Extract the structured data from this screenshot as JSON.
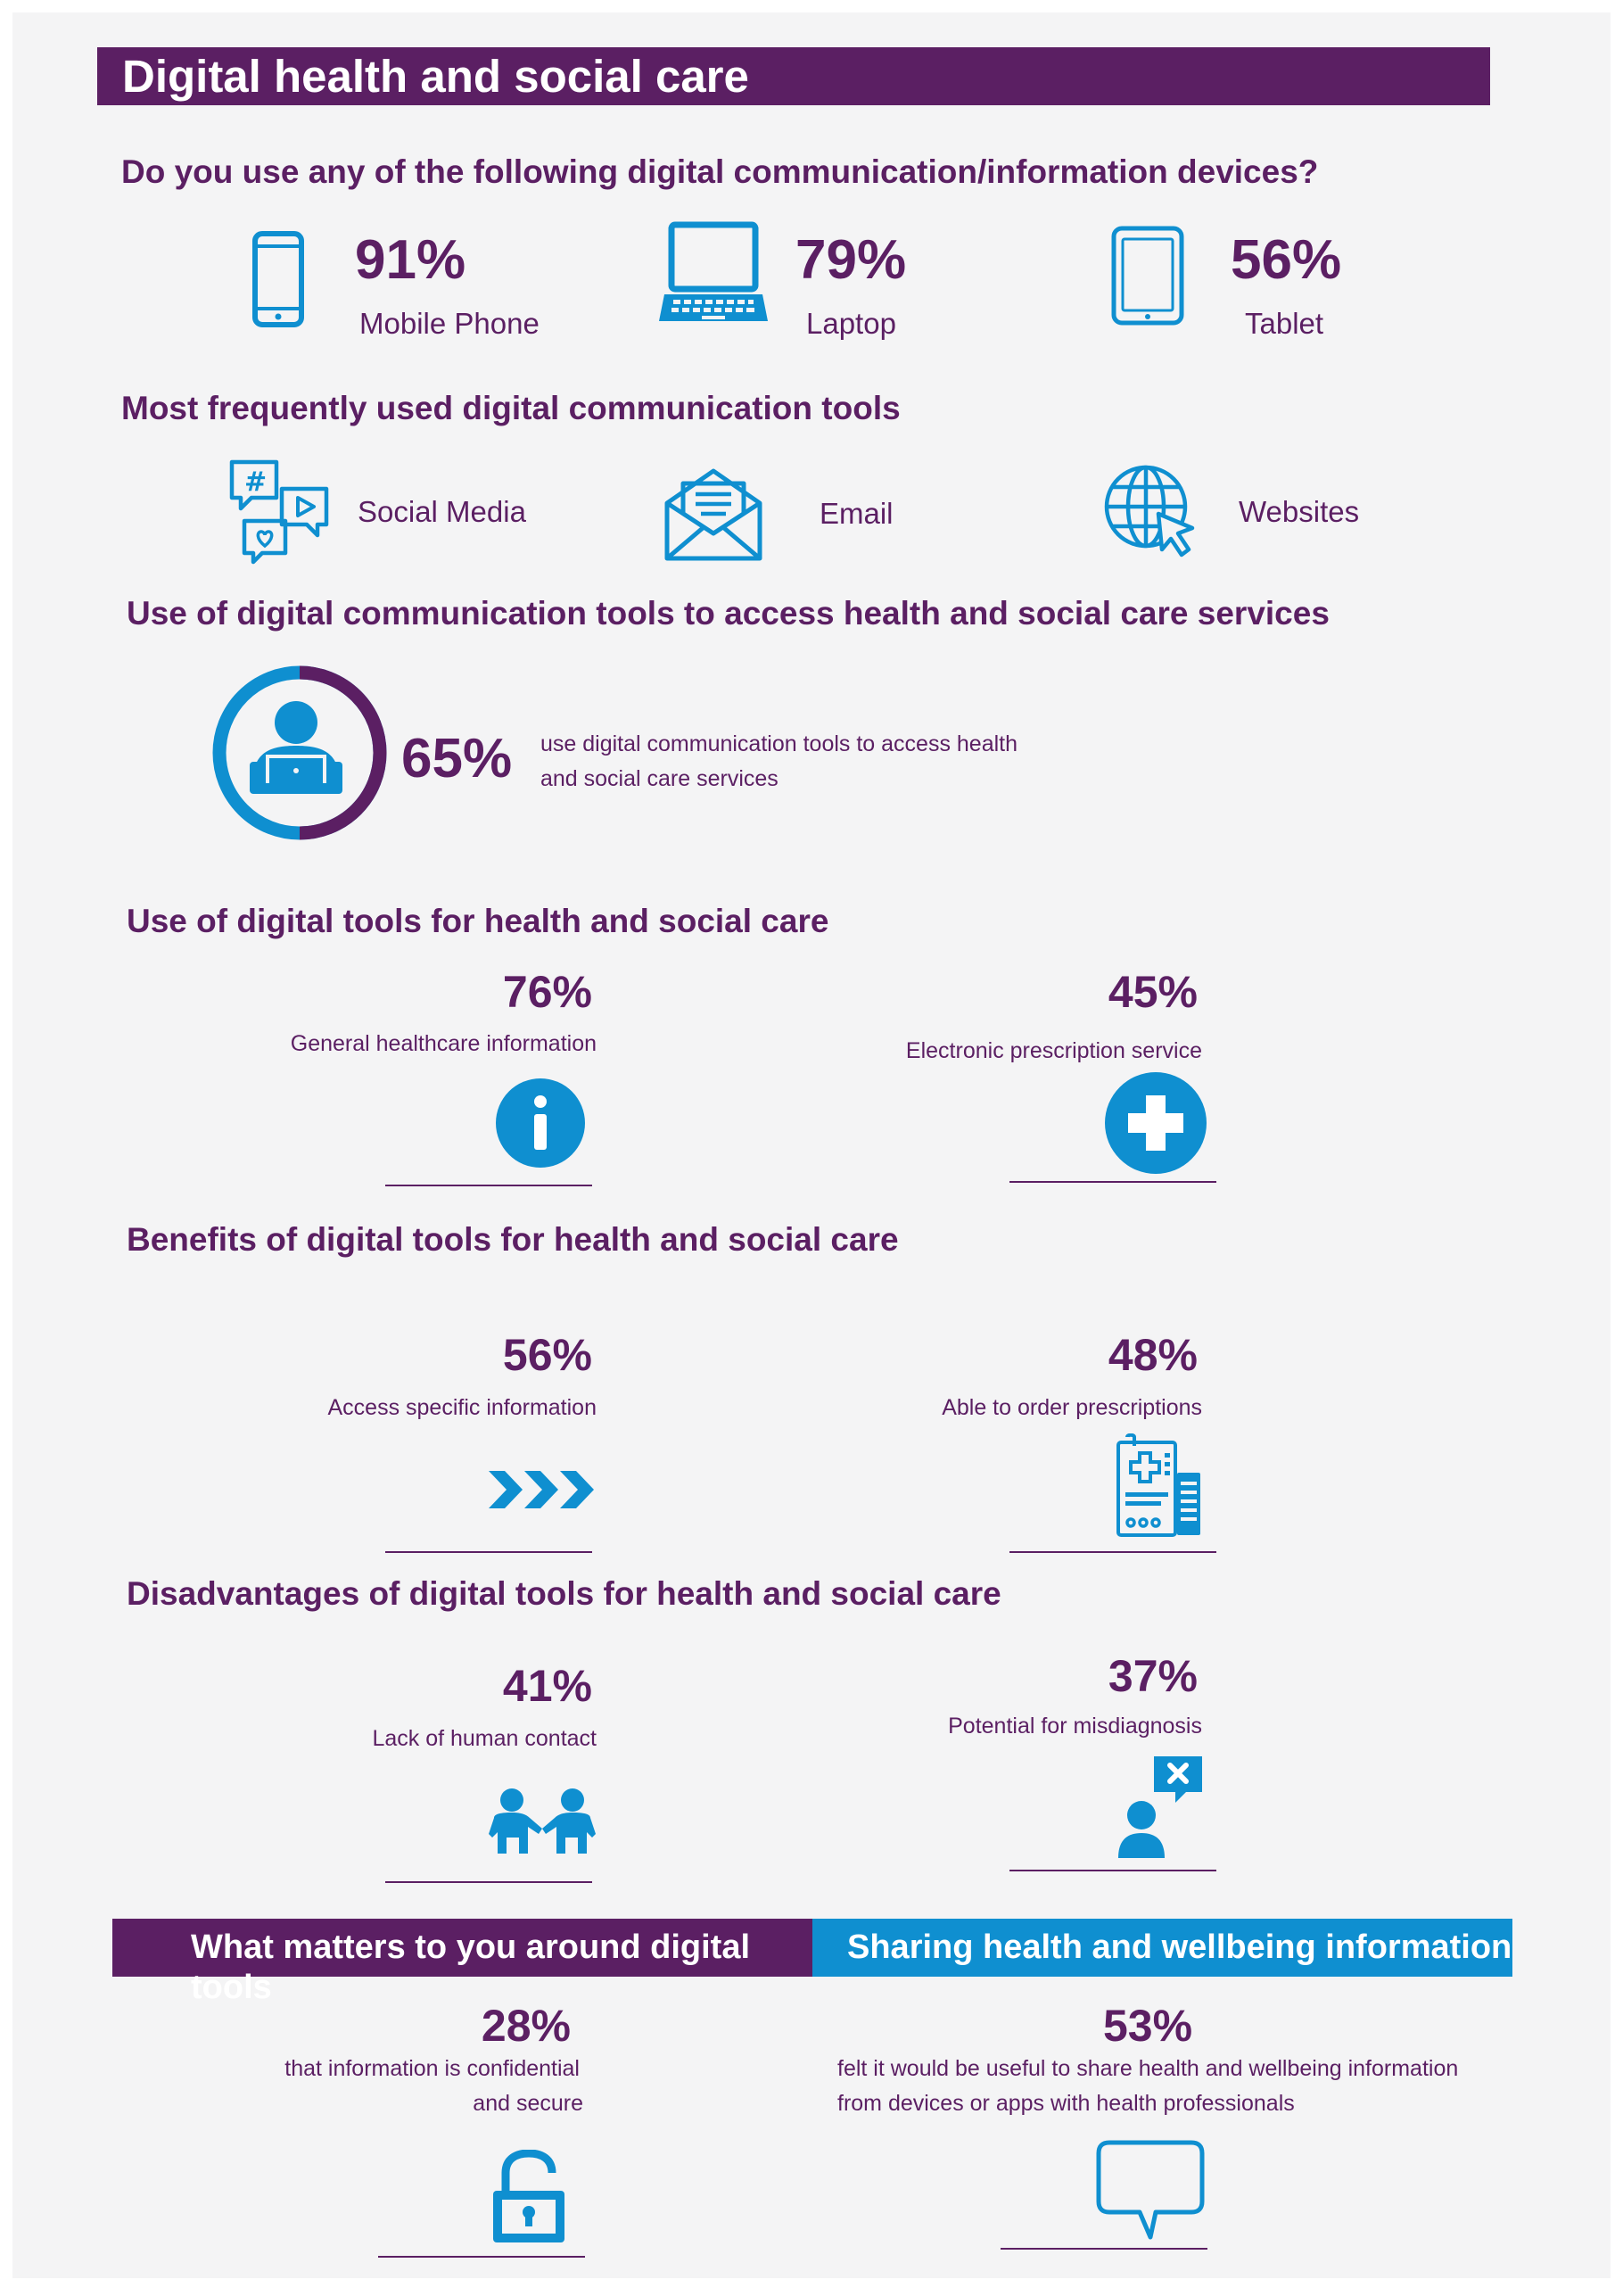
{
  "title": "Digital health and social care",
  "devices": {
    "question": "Do you use any of the following digital communication/information devices?",
    "items": [
      {
        "pct": "91%",
        "label": "Mobile Phone",
        "icon": "mobile-phone-icon"
      },
      {
        "pct": "79%",
        "label": "Laptop",
        "icon": "laptop-icon"
      },
      {
        "pct": "56%",
        "label": "Tablet",
        "icon": "tablet-icon"
      }
    ]
  },
  "tools": {
    "heading": "Most frequently used digital communication tools",
    "items": [
      {
        "label": "Social Media",
        "icon": "social-media-icon"
      },
      {
        "label": "Email",
        "icon": "email-icon"
      },
      {
        "label": "Websites",
        "icon": "website-globe-icon"
      }
    ]
  },
  "access": {
    "heading": "Use of digital communication tools to access health and social care services",
    "pct": "65%",
    "pct_value": 65,
    "line1": "use digital communication tools to access health",
    "line2": "and social care services"
  },
  "use": {
    "heading": "Use of digital tools for health and social care",
    "left": {
      "pct": "76%",
      "label": "General healthcare information",
      "icon": "info-icon"
    },
    "right": {
      "pct": "45%",
      "label": "Electronic prescription service",
      "icon": "medical-cross-icon"
    }
  },
  "benefits": {
    "heading": "Benefits of digital tools for health and social care",
    "left": {
      "pct": "56%",
      "label": "Access specific information",
      "icon": "fast-forward-chevrons-icon"
    },
    "right": {
      "pct": "48%",
      "label": "Able to order prescriptions",
      "icon": "prescription-icon"
    }
  },
  "disadvantages": {
    "heading": "Disadvantages of digital tools  for health and social care",
    "left": {
      "pct": "41%",
      "label": "Lack of human contact",
      "icon": "two-people-icon"
    },
    "right": {
      "pct": "37%",
      "label": "Potential for misdiagnosis",
      "icon": "person-error-icon"
    }
  },
  "matters": {
    "bar_line1": "What matters to you around digital",
    "bar_line2": "tools",
    "pct": "28%",
    "line1": "that information is confidential",
    "line2": "and secure",
    "icon": "padlock-icon"
  },
  "sharing": {
    "bar": "Sharing health and wellbeing information",
    "pct": "53%",
    "line1": "felt it would be useful to share health and wellbeing information",
    "line2": "from devices or apps with health professionals",
    "icon": "speech-bubble-icon"
  },
  "colors": {
    "purple": "#5b1f63",
    "blue": "#0f8fd0",
    "background": "#f4f4f5"
  }
}
